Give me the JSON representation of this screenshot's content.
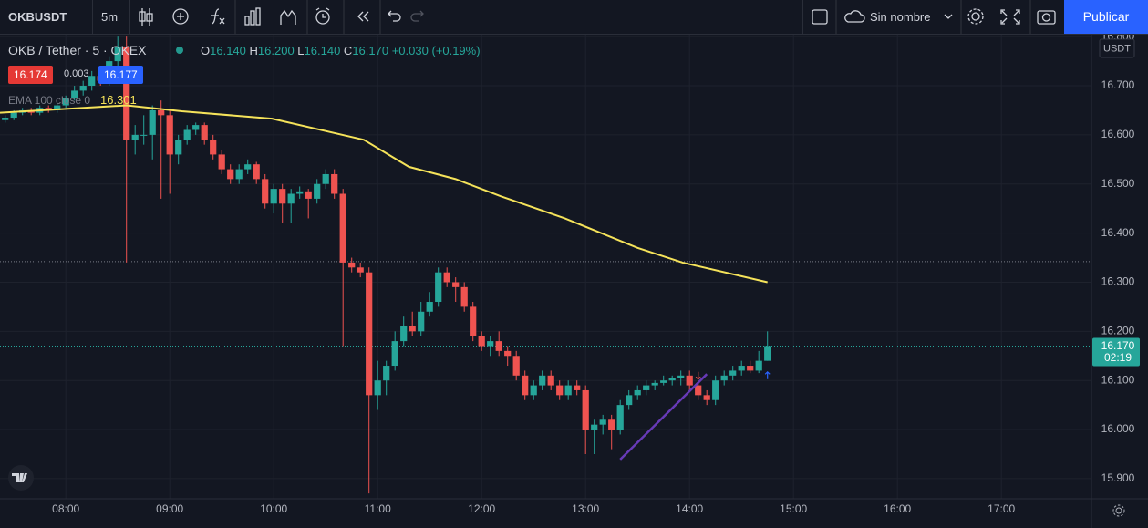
{
  "toolbar": {
    "symbol": "OKBUSDT",
    "interval": "5m",
    "layout_name": "Sin nombre",
    "publish": "Publicar"
  },
  "legend": {
    "title": "OKB / Tether · 5 · OKEX",
    "ohlc": [
      {
        "label": "O",
        "value": "16.140"
      },
      {
        "label": "H",
        "value": "16.200"
      },
      {
        "label": "L",
        "value": "16.140"
      },
      {
        "label": "C",
        "value": "16.170"
      }
    ],
    "change": "+0.030 (+0.19%)",
    "bid": "16.174",
    "spread": "0.003",
    "ask": "16.177",
    "indicator_value": "16.301"
  },
  "chart_data": {
    "type": "candlestick",
    "x": [
      445,
      450,
      455,
      460,
      465,
      470,
      475,
      480,
      485,
      490,
      495,
      500,
      505,
      510,
      515,
      520,
      525,
      530,
      535,
      540,
      545,
      550,
      555,
      560,
      565,
      570,
      575,
      580,
      585,
      590,
      595,
      600,
      605,
      610,
      615,
      620,
      625,
      630,
      635,
      640,
      645,
      650,
      655,
      660,
      665,
      670,
      675,
      680,
      685,
      690,
      695,
      700,
      705,
      710,
      715,
      720,
      725,
      730,
      735,
      740,
      745,
      750,
      755,
      760,
      765,
      770,
      775,
      780,
      785,
      790,
      795,
      800,
      805,
      810,
      815,
      820,
      825,
      830,
      835,
      840,
      845,
      850,
      855,
      860,
      865,
      870,
      875,
      880,
      885
    ],
    "open": [
      16.63,
      16.635,
      16.645,
      16.65,
      16.645,
      16.655,
      16.65,
      16.66,
      16.675,
      16.69,
      16.7,
      16.72,
      16.71,
      16.75,
      16.78,
      16.59,
      16.6,
      16.6,
      16.65,
      16.64,
      16.56,
      16.59,
      16.61,
      16.62,
      16.59,
      16.56,
      16.53,
      16.51,
      16.53,
      16.54,
      16.51,
      16.46,
      16.49,
      16.46,
      16.48,
      16.485,
      16.47,
      16.5,
      16.52,
      16.48,
      16.34,
      16.33,
      16.32,
      16.07,
      16.1,
      16.13,
      16.18,
      16.21,
      16.2,
      16.24,
      16.26,
      16.32,
      16.3,
      16.29,
      16.25,
      16.19,
      16.17,
      16.18,
      16.16,
      16.15,
      16.11,
      16.07,
      16.09,
      16.11,
      16.09,
      16.07,
      16.09,
      16.08,
      16,
      16.01,
      16.02,
      16,
      16.05,
      16.07,
      16.08,
      16.09,
      16.095,
      16.1,
      16.105,
      16.11,
      16.09,
      16.07,
      16.06,
      16.1,
      16.11,
      16.12,
      16.13,
      16.12,
      16.14
    ],
    "high": [
      16.64,
      16.65,
      16.655,
      16.655,
      16.66,
      16.66,
      16.665,
      16.68,
      16.7,
      16.71,
      16.73,
      16.74,
      16.76,
      16.8,
      16.8,
      16.62,
      16.64,
      16.66,
      16.67,
      16.65,
      16.6,
      16.62,
      16.625,
      16.625,
      16.6,
      16.57,
      16.54,
      16.54,
      16.55,
      16.545,
      16.52,
      16.5,
      16.5,
      16.49,
      16.495,
      16.49,
      16.51,
      16.53,
      16.53,
      16.49,
      16.35,
      16.34,
      16.33,
      16.14,
      16.14,
      16.2,
      16.23,
      16.24,
      16.26,
      16.28,
      16.33,
      16.33,
      16.31,
      16.3,
      16.26,
      16.2,
      16.19,
      16.2,
      16.17,
      16.16,
      16.12,
      16.1,
      16.12,
      16.12,
      16.1,
      16.1,
      16.1,
      16.09,
      16.02,
      16.03,
      16.03,
      16.06,
      16.08,
      16.09,
      16.1,
      16.1,
      16.11,
      16.11,
      16.12,
      16.12,
      16.1,
      16.08,
      16.11,
      16.12,
      16.13,
      16.14,
      16.14,
      16.16,
      16.2
    ],
    "low": [
      16.625,
      16.63,
      16.64,
      16.64,
      16.64,
      16.645,
      16.645,
      16.655,
      16.67,
      16.68,
      16.69,
      16.7,
      16.7,
      16.73,
      16.34,
      16.56,
      16.58,
      16.55,
      16.47,
      16.48,
      16.54,
      16.58,
      16.6,
      16.58,
      16.55,
      16.52,
      16.5,
      16.5,
      16.52,
      16.5,
      16.45,
      16.44,
      16.42,
      16.42,
      16.47,
      16.43,
      16.46,
      16.49,
      16.47,
      16.17,
      16.32,
      16.31,
      15.87,
      16.04,
      16.07,
      16.12,
      16.17,
      16.19,
      16.19,
      16.23,
      16.25,
      16.29,
      16.26,
      16.24,
      16.18,
      16.16,
      16.15,
      16.15,
      16.13,
      16.1,
      16.06,
      16.06,
      16.08,
      16.08,
      16.06,
      16.06,
      16.07,
      15.95,
      15.95,
      15.99,
      15.96,
      15.99,
      16.04,
      16.06,
      16.07,
      16.08,
      16.09,
      16.09,
      16.09,
      16.08,
      16.06,
      16.05,
      16.05,
      16.09,
      16.1,
      16.11,
      16.115,
      16.115,
      16.14
    ],
    "close": [
      16.635,
      16.645,
      16.65,
      16.645,
      16.655,
      16.65,
      16.66,
      16.675,
      16.69,
      16.7,
      16.72,
      16.71,
      16.75,
      16.78,
      16.59,
      16.6,
      16.6,
      16.65,
      16.64,
      16.56,
      16.59,
      16.61,
      16.62,
      16.59,
      16.56,
      16.53,
      16.51,
      16.53,
      16.54,
      16.51,
      16.46,
      16.49,
      16.46,
      16.48,
      16.485,
      16.47,
      16.5,
      16.52,
      16.48,
      16.34,
      16.33,
      16.32,
      16.07,
      16.1,
      16.13,
      16.18,
      16.21,
      16.2,
      16.24,
      16.26,
      16.32,
      16.3,
      16.29,
      16.25,
      16.19,
      16.17,
      16.18,
      16.16,
      16.15,
      16.11,
      16.07,
      16.09,
      16.11,
      16.09,
      16.07,
      16.09,
      16.08,
      16,
      16.01,
      16.02,
      16,
      16.05,
      16.07,
      16.08,
      16.09,
      16.095,
      16.1,
      16.105,
      16.11,
      16.09,
      16.07,
      16.06,
      16.1,
      16.11,
      16.12,
      16.13,
      16.12,
      16.14,
      16.17
    ],
    "up_color": "#26a69a",
    "down_color": "#ef5350",
    "xlim": [
      442,
      1072
    ],
    "xticks": [
      {
        "value": 480,
        "label": "08:00"
      },
      {
        "value": 540,
        "label": "09:00"
      },
      {
        "value": 600,
        "label": "10:00"
      },
      {
        "value": 660,
        "label": "11:00"
      },
      {
        "value": 720,
        "label": "12:00"
      },
      {
        "value": 780,
        "label": "13:00"
      },
      {
        "value": 840,
        "label": "14:00"
      },
      {
        "value": 900,
        "label": "15:00"
      },
      {
        "value": 960,
        "label": "16:00"
      },
      {
        "value": 1020,
        "label": "17:00"
      }
    ],
    "ylim": [
      15.859,
      16.804
    ],
    "yticks": [
      {
        "value": 15.9,
        "label": "15.900"
      },
      {
        "value": 16,
        "label": "16.000"
      },
      {
        "value": 16.1,
        "label": "16.100"
      },
      {
        "value": 16.2,
        "label": "16.200"
      },
      {
        "value": 16.3,
        "label": "16.300"
      },
      {
        "value": 16.4,
        "label": "16.400"
      },
      {
        "value": 16.5,
        "label": "16.500"
      },
      {
        "value": 16.6,
        "label": "16.600"
      },
      {
        "value": 16.7,
        "label": "16.700"
      },
      {
        "value": 16.8,
        "label": "16.800"
      }
    ],
    "grid": true,
    "axis_unit": "USDT",
    "series": [
      {
        "name": "EMA 100 close 0",
        "color": "#f5e35a",
        "x": [
          442,
          515,
          547,
          599,
          652,
          678,
          705,
          731,
          768,
          810,
          836,
          885
        ],
        "values": [
          16.645,
          16.66,
          16.648,
          16.633,
          16.59,
          16.535,
          16.51,
          16.475,
          16.43,
          16.37,
          16.34,
          16.3
        ]
      }
    ],
    "last_price": {
      "value": 16.17,
      "label": "16.170",
      "countdown": "02:19",
      "color": "#26a69a"
    },
    "price_lines": [
      16.342,
      16.17
    ],
    "trendline": {
      "color": "#673ab7",
      "x": [
        800,
        850
      ],
      "values": [
        15.939,
        16.113
      ]
    },
    "signals": [
      {
        "x": 845,
        "value": 16.11,
        "direction": "down",
        "color": "#ef5350"
      },
      {
        "x": 885,
        "value": 16.11,
        "direction": "up",
        "color": "#2962ff"
      }
    ]
  }
}
